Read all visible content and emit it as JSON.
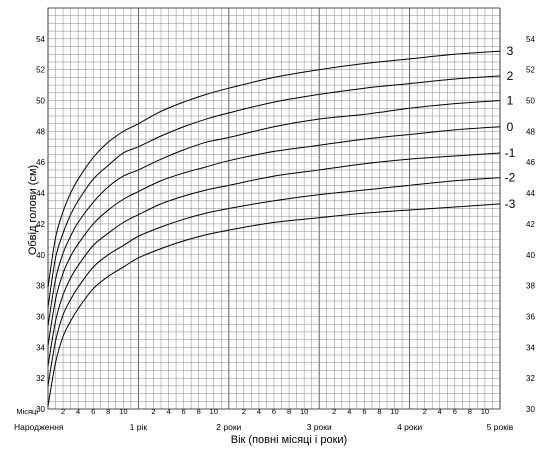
{
  "chart_data": {
    "type": "line",
    "ylabel": "Обвід голови (см)",
    "xlabel": "Вік (повні місяці і роки)",
    "ylim": [
      30,
      56
    ],
    "xlim": [
      0,
      60
    ],
    "y_ticks": [
      30,
      32,
      34,
      36,
      38,
      40,
      42,
      44,
      46,
      48,
      50,
      52,
      54
    ],
    "x_month_row_label": "Місяці",
    "x_month_ticks": [
      {
        "x": 2,
        "label": "2"
      },
      {
        "x": 4,
        "label": "4"
      },
      {
        "x": 6,
        "label": "6"
      },
      {
        "x": 8,
        "label": "8"
      },
      {
        "x": 10,
        "label": "10"
      },
      {
        "x": 14,
        "label": "2"
      },
      {
        "x": 16,
        "label": "4"
      },
      {
        "x": 18,
        "label": "6"
      },
      {
        "x": 20,
        "label": "8"
      },
      {
        "x": 22,
        "label": "10"
      },
      {
        "x": 26,
        "label": "2"
      },
      {
        "x": 28,
        "label": "4"
      },
      {
        "x": 30,
        "label": "6"
      },
      {
        "x": 32,
        "label": "8"
      },
      {
        "x": 34,
        "label": "10"
      },
      {
        "x": 38,
        "label": "2"
      },
      {
        "x": 40,
        "label": "4"
      },
      {
        "x": 42,
        "label": "6"
      },
      {
        "x": 44,
        "label": "8"
      },
      {
        "x": 46,
        "label": "10"
      },
      {
        "x": 50,
        "label": "2"
      },
      {
        "x": 52,
        "label": "4"
      },
      {
        "x": 54,
        "label": "6"
      },
      {
        "x": 56,
        "label": "8"
      },
      {
        "x": 58,
        "label": "10"
      }
    ],
    "x_period_labels": [
      {
        "x": 0,
        "label": "Народження"
      },
      {
        "x": 12,
        "label": "1 рік"
      },
      {
        "x": 24,
        "label": "2 роки"
      },
      {
        "x": 36,
        "label": "3 роки"
      },
      {
        "x": 48,
        "label": "4 роки"
      },
      {
        "x": 60,
        "label": "5 років"
      }
    ],
    "x": [
      0,
      1,
      2,
      3,
      4,
      6,
      8,
      10,
      12,
      15,
      18,
      21,
      24,
      30,
      36,
      42,
      48,
      54,
      60
    ],
    "series": [
      {
        "name": "3",
        "values": [
          37.9,
          41.1,
          42.8,
          44.0,
          44.9,
          46.3,
          47.3,
          48.0,
          48.5,
          49.3,
          49.9,
          50.4,
          50.8,
          51.5,
          52.0,
          52.4,
          52.7,
          53.0,
          53.2
        ]
      },
      {
        "name": "2",
        "values": [
          36.6,
          39.8,
          41.4,
          42.6,
          43.5,
          44.9,
          45.8,
          46.6,
          47.0,
          47.7,
          48.3,
          48.8,
          49.2,
          49.9,
          50.4,
          50.8,
          51.1,
          51.4,
          51.6
        ]
      },
      {
        "name": "1",
        "values": [
          35.4,
          38.4,
          40.1,
          41.2,
          42.1,
          43.4,
          44.4,
          45.1,
          45.5,
          46.2,
          46.8,
          47.3,
          47.6,
          48.3,
          48.8,
          49.1,
          49.5,
          49.8,
          50.0
        ]
      },
      {
        "name": "0",
        "values": [
          34.1,
          37.1,
          38.8,
          39.9,
          40.7,
          42.0,
          42.9,
          43.6,
          44.1,
          44.8,
          45.3,
          45.7,
          46.1,
          46.7,
          47.1,
          47.5,
          47.8,
          48.1,
          48.3
        ]
      },
      {
        "name": "-1",
        "values": [
          32.8,
          35.7,
          37.4,
          38.5,
          39.3,
          40.6,
          41.4,
          42.1,
          42.6,
          43.3,
          43.8,
          44.2,
          44.5,
          45.1,
          45.5,
          45.9,
          46.2,
          46.4,
          46.6
        ]
      },
      {
        "name": "-2",
        "values": [
          31.5,
          34.4,
          36.1,
          37.1,
          37.9,
          39.2,
          40.0,
          40.6,
          41.2,
          41.8,
          42.3,
          42.7,
          43.0,
          43.5,
          43.9,
          44.2,
          44.5,
          44.8,
          45.0
        ]
      },
      {
        "name": "-3",
        "values": [
          30.2,
          33.0,
          34.7,
          35.7,
          36.5,
          37.8,
          38.6,
          39.2,
          39.8,
          40.4,
          40.9,
          41.3,
          41.6,
          42.1,
          42.4,
          42.7,
          42.9,
          43.1,
          43.3
        ]
      }
    ],
    "grid": true,
    "legend": "none",
    "line_color": "#000000",
    "grid_color": "#888888"
  }
}
